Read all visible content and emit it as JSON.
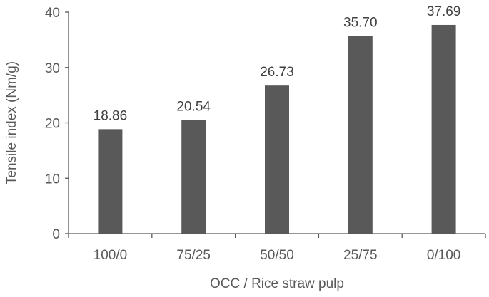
{
  "chart_data": {
    "type": "bar",
    "categories": [
      "100/0",
      "75/25",
      "50/50",
      "25/75",
      "0/100"
    ],
    "values": [
      18.86,
      20.54,
      26.73,
      35.7,
      37.69
    ],
    "data_labels": [
      "18.86",
      "20.54",
      "26.73",
      "35.70",
      "37.69"
    ],
    "y_ticks": [
      "0",
      "10",
      "20",
      "30",
      "40"
    ],
    "title": "",
    "xlabel": "OCC / Rice straw pulp",
    "ylabel": "Tensile index (Nm/g)",
    "ylim": [
      0,
      40
    ],
    "grid": false,
    "legend": "none",
    "bar_color": "#595959",
    "axis_color": "#595959"
  }
}
